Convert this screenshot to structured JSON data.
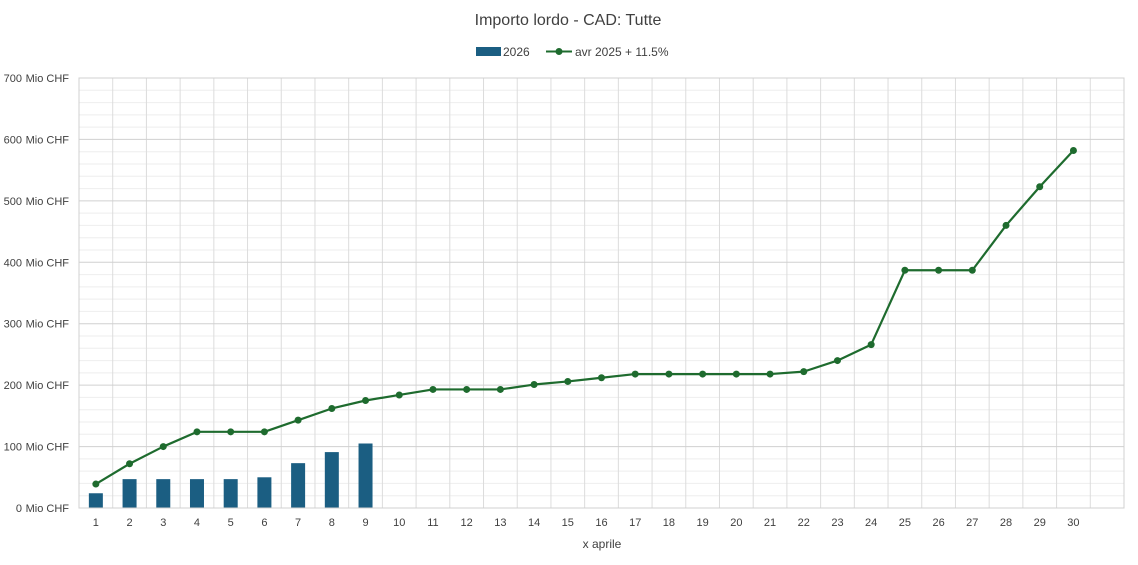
{
  "chart_data": {
    "type": "bar",
    "title": "Importo lordo - CAD: Tutte",
    "xlabel": "x aprile",
    "ylabel": "",
    "ylim": [
      0,
      700
    ],
    "y_ticks": [
      0,
      100,
      200,
      300,
      400,
      500,
      600,
      700
    ],
    "y_tick_suffix": "Mio CHF",
    "categories": [
      "1",
      "2",
      "3",
      "4",
      "5",
      "6",
      "7",
      "8",
      "9",
      "10",
      "11",
      "12",
      "13",
      "14",
      "15",
      "16",
      "17",
      "18",
      "19",
      "20",
      "21",
      "22",
      "23",
      "24",
      "25",
      "26",
      "27",
      "28",
      "29",
      "30"
    ],
    "series": [
      {
        "name": "2026",
        "type": "bar",
        "color": "#1B5E82",
        "values": [
          24,
          47,
          47,
          47,
          47,
          50,
          73,
          91,
          105,
          null,
          null,
          null,
          null,
          null,
          null,
          null,
          null,
          null,
          null,
          null,
          null,
          null,
          null,
          null,
          null,
          null,
          null,
          null,
          null,
          null
        ]
      },
      {
        "name": "avr 2025 + 11.5%",
        "type": "line",
        "color": "#1E6B2E",
        "values": [
          39,
          72,
          100,
          124,
          124,
          124,
          143,
          162,
          175,
          184,
          193,
          193,
          193,
          201,
          206,
          212,
          218,
          218,
          218,
          218,
          218,
          222,
          240,
          266,
          387,
          387,
          387,
          460,
          523,
          582
        ]
      }
    ],
    "grid": true,
    "legend_position": "top"
  }
}
